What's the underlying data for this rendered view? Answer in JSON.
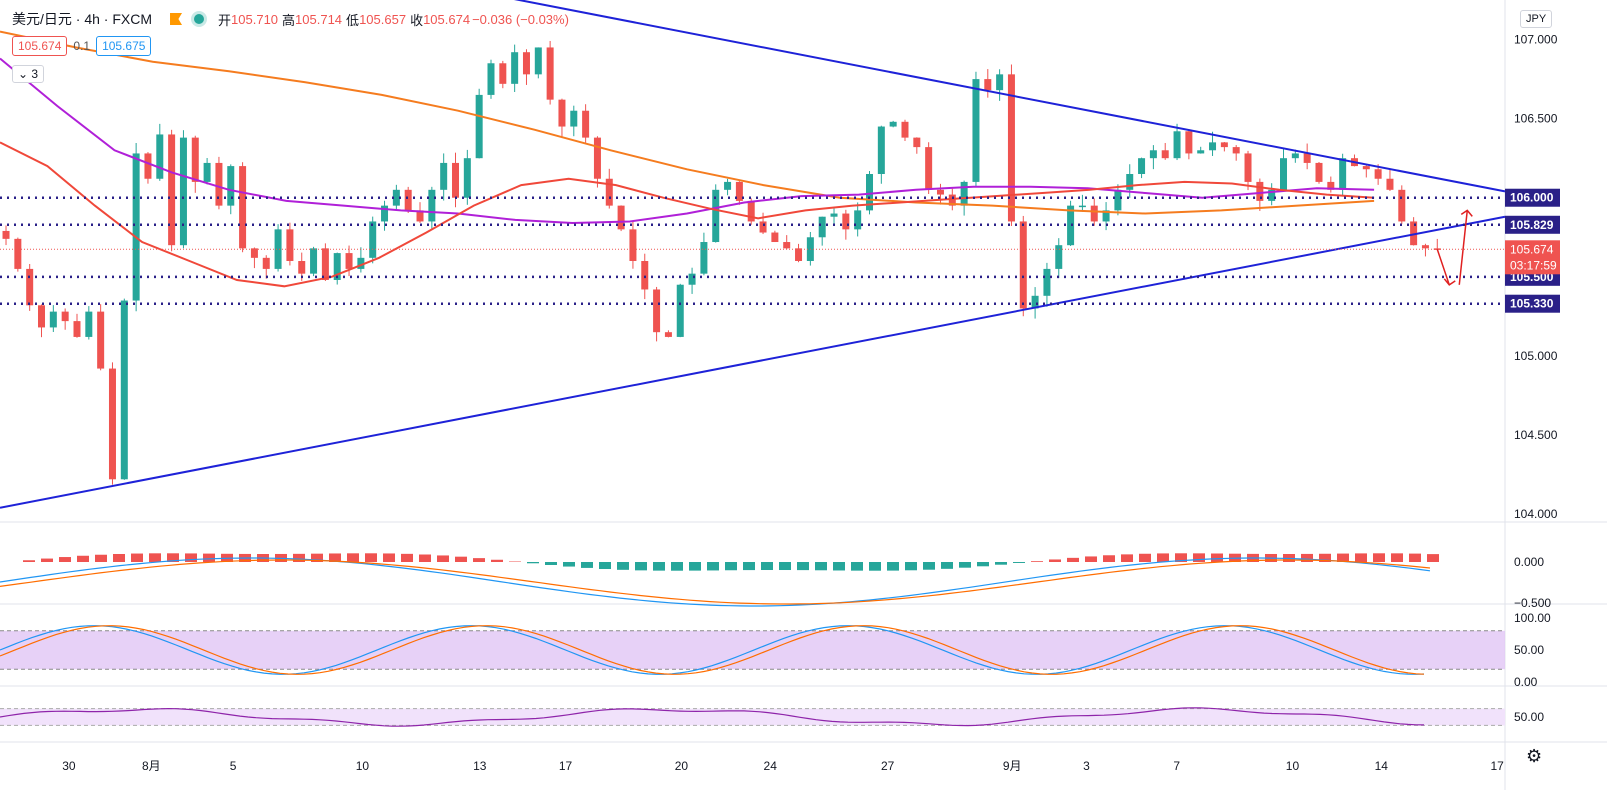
{
  "legend": {
    "symbol": "美元/日元 · 4h · FXCM",
    "o_label": "开",
    "o": "105.710",
    "h_label": "高",
    "h": "105.714",
    "l_label": "低",
    "l": "105.657",
    "c_label": "收",
    "c": "105.674",
    "change": "−0.036 (−0.03%)"
  },
  "trade": {
    "sell": "105.674",
    "spread": "0.1",
    "buy": "105.675"
  },
  "indicators_collapsed": "3",
  "currency_button": "JPY",
  "icons": {
    "flag": "flag-icon",
    "status": "market-open-dot-icon",
    "settings": "gear-icon",
    "collapse": "chevron-down-icon"
  },
  "colors": {
    "up": "#26a69a",
    "down": "#ef5350",
    "trend": "#1e22d8",
    "ma_fast": "#f0483a",
    "ma_mid": "#b020d8",
    "ma_slow": "#f57c1f",
    "level": "#2a2088",
    "arrow": "#e02020"
  },
  "chart_data": {
    "type": "candlestick",
    "y_range": [
      103.95,
      107.25
    ],
    "y_ticks": [
      "107.000",
      "106.500",
      "106.000",
      "105.500",
      "105.000",
      "104.500",
      "104.000"
    ],
    "x_ticks": [
      "30",
      "8月",
      "5",
      "10",
      "13",
      "17",
      "20",
      "24",
      "27",
      "9月",
      "3",
      "7",
      "10",
      "14",
      "17"
    ],
    "levels": [
      {
        "value": 106.0,
        "label": "106.000"
      },
      {
        "value": 105.829,
        "label": "105.829"
      },
      {
        "value": 105.5,
        "label": "105.500"
      },
      {
        "value": 105.33,
        "label": "105.330"
      }
    ],
    "last_price": {
      "value": 105.674,
      "label": "105.674",
      "countdown": "03:17:59"
    },
    "close_path": [
      105.74,
      105.55,
      105.32,
      105.18,
      105.28,
      105.22,
      105.12,
      105.28,
      104.92,
      104.22,
      105.35,
      106.28,
      106.12,
      106.4,
      105.7,
      106.38,
      106.1,
      106.22,
      105.95,
      106.2,
      105.68,
      105.62,
      105.55,
      105.8,
      105.6,
      105.52,
      105.68,
      105.48,
      105.65,
      105.55,
      105.62,
      105.85,
      105.95,
      106.05,
      105.92,
      105.85,
      106.05,
      106.22,
      106.0,
      106.25,
      106.65,
      106.85,
      106.72,
      106.92,
      106.78,
      106.95,
      106.62,
      106.45,
      106.55,
      106.38,
      106.12,
      105.95,
      105.8,
      105.6,
      105.42,
      105.15,
      105.12,
      105.45,
      105.52,
      105.72,
      106.05,
      106.1,
      105.98,
      105.85,
      105.78,
      105.72,
      105.68,
      105.6,
      105.75,
      105.88,
      105.9,
      105.8,
      105.92,
      106.15,
      106.45,
      106.48,
      106.38,
      106.32,
      106.05,
      106.02,
      105.95,
      106.1,
      106.75,
      106.68,
      106.78,
      105.85,
      105.3,
      105.38,
      105.55,
      105.7,
      105.95,
      105.95,
      105.85,
      105.92,
      106.05,
      106.15,
      106.25,
      106.3,
      106.25,
      106.42,
      106.28,
      106.3,
      106.35,
      106.32,
      106.28,
      106.1,
      105.98,
      106.05,
      106.25,
      106.28,
      106.22,
      106.1,
      106.05,
      106.25,
      106.2,
      106.18,
      106.12,
      106.05,
      105.85,
      105.7,
      105.68,
      105.67
    ],
    "ma_fast": [
      106.35,
      106.2,
      105.95,
      105.72,
      105.6,
      105.48,
      105.44,
      105.5,
      105.62,
      105.78,
      105.95,
      106.08,
      106.12,
      106.08,
      106.0,
      105.93,
      105.87,
      105.92,
      105.95,
      105.97,
      105.99,
      106.01,
      106.03,
      106.05,
      106.08,
      106.1,
      106.09,
      106.05,
      106.02,
      106.0
    ],
    "ma_mid": [
      106.88,
      106.58,
      106.3,
      106.16,
      106.05,
      105.98,
      105.95,
      105.92,
      105.9,
      105.86,
      105.84,
      105.85,
      105.9,
      105.97,
      106.01,
      106.02,
      106.05,
      106.07,
      106.07,
      106.06,
      106.03,
      106.0,
      106.03,
      106.06,
      106.05
    ],
    "ma_slow": [
      107.05,
      106.95,
      106.86,
      106.8,
      106.73,
      106.65,
      106.55,
      106.43,
      106.3,
      106.18,
      106.08,
      106.0,
      105.97,
      105.95,
      105.92,
      105.9,
      105.92,
      105.95,
      105.98
    ],
    "trendlines": [
      {
        "name": "upper",
        "from": [
          0.28,
          107.37
        ],
        "to": [
          1.0,
          106.04
        ]
      },
      {
        "name": "lower",
        "from": [
          0.0,
          104.04
        ],
        "to": [
          1.0,
          105.88
        ]
      }
    ],
    "macd": {
      "y_ticks": [
        "0.000",
        "−0.500"
      ]
    },
    "stoch": {
      "y_ticks": [
        "100.00",
        "50.00",
        "0.00"
      ],
      "bands": [
        80,
        20
      ]
    },
    "rsi": {
      "y_ticks": [
        "50.00"
      ],
      "bands": [
        70,
        30
      ]
    }
  }
}
